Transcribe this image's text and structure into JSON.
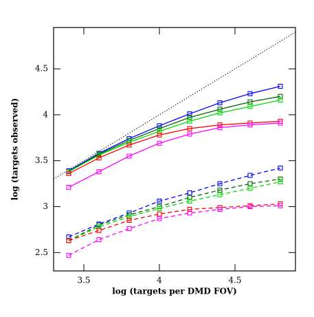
{
  "chart_data": {
    "type": "line",
    "xlabel": "log (targets per DMD FOV)",
    "ylabel": "log (targets observed)",
    "x": [
      3.4,
      3.6,
      3.8,
      4.0,
      4.2,
      4.4,
      4.6,
      4.8
    ],
    "xlim": [
      3.3,
      4.9
    ],
    "xticks": [
      3.5,
      4,
      4.5
    ],
    "ylim": [
      2.3,
      4.95
    ],
    "yticks": [
      2.5,
      3,
      3.5,
      4,
      4.5
    ],
    "identity_line": true,
    "marker": "open-square",
    "series": [
      {
        "color": "#0000ff",
        "dash": false,
        "values": [
          3.39,
          3.58,
          3.74,
          3.88,
          4.01,
          4.13,
          4.23,
          4.31
        ]
      },
      {
        "color": "#006400",
        "dash": false,
        "values": [
          3.38,
          3.57,
          3.72,
          3.85,
          3.97,
          4.06,
          4.14,
          4.2
        ]
      },
      {
        "color": "#00dd00",
        "dash": false,
        "values": [
          3.38,
          3.56,
          3.7,
          3.82,
          3.93,
          4.02,
          4.09,
          4.16
        ]
      },
      {
        "color": "#ff0000",
        "dash": false,
        "values": [
          3.36,
          3.53,
          3.67,
          3.78,
          3.85,
          3.89,
          3.91,
          3.93
        ]
      },
      {
        "color": "#ff00ff",
        "dash": false,
        "values": [
          3.21,
          3.38,
          3.55,
          3.69,
          3.79,
          3.86,
          3.89,
          3.91
        ]
      },
      {
        "color": "#0000ff",
        "dash": true,
        "values": [
          2.67,
          2.81,
          2.93,
          3.06,
          3.15,
          3.25,
          3.34,
          3.42
        ]
      },
      {
        "color": "#006400",
        "dash": true,
        "values": [
          2.63,
          2.8,
          2.91,
          3.0,
          3.1,
          3.18,
          3.25,
          3.3
        ]
      },
      {
        "color": "#00dd00",
        "dash": true,
        "values": [
          2.63,
          2.78,
          2.89,
          2.98,
          3.06,
          3.13,
          3.2,
          3.27
        ]
      },
      {
        "color": "#ff0000",
        "dash": true,
        "values": [
          2.63,
          2.74,
          2.85,
          2.92,
          2.97,
          2.99,
          3.01,
          3.03
        ]
      },
      {
        "color": "#ff00ff",
        "dash": true,
        "values": [
          2.47,
          2.64,
          2.76,
          2.87,
          2.93,
          2.97,
          3.0,
          3.01
        ]
      }
    ]
  }
}
